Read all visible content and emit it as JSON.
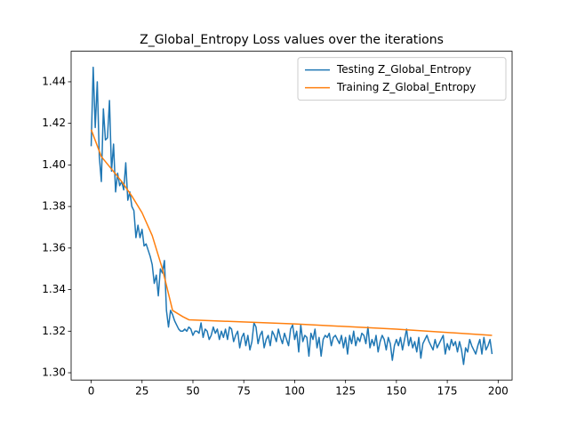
{
  "chart_data": {
    "type": "line",
    "title": "Z_Global_Entropy Loss values over the iterations",
    "xlim": [
      -9.85,
      206.85
    ],
    "ylim": [
      1.2965,
      1.4547
    ],
    "xticks": [
      0,
      25,
      50,
      75,
      100,
      125,
      150,
      175,
      200
    ],
    "yticks": [
      {
        "value": 1.3,
        "label": "1.30"
      },
      1.32,
      1.34,
      1.36,
      1.38,
      {
        "value": 1.4,
        "label": "1.40"
      },
      1.42,
      1.44
    ],
    "legend": "upper right",
    "series": [
      {
        "name": "Testing Z_Global_Entropy",
        "color": "#1f77b4",
        "x": [
          0,
          1,
          2,
          3,
          4,
          5,
          6,
          7,
          8,
          9,
          10,
          11,
          12,
          13,
          14,
          15,
          16,
          17,
          18,
          19,
          20,
          21,
          22,
          23,
          24,
          25,
          26,
          27,
          28,
          29,
          30,
          31,
          32,
          33,
          34,
          35,
          36,
          37,
          38,
          39,
          40,
          41,
          42,
          43,
          44,
          45,
          46,
          47,
          48,
          49,
          50,
          51,
          52,
          53,
          54,
          55,
          56,
          57,
          58,
          59,
          60,
          61,
          62,
          63,
          64,
          65,
          66,
          67,
          68,
          69,
          70,
          71,
          72,
          73,
          74,
          75,
          76,
          77,
          78,
          79,
          80,
          81,
          82,
          83,
          84,
          85,
          86,
          87,
          88,
          89,
          90,
          91,
          92,
          93,
          94,
          95,
          96,
          97,
          98,
          99,
          100,
          101,
          102,
          103,
          104,
          105,
          106,
          107,
          108,
          109,
          110,
          111,
          112,
          113,
          114,
          115,
          116,
          117,
          118,
          119,
          120,
          121,
          122,
          123,
          124,
          125,
          126,
          127,
          128,
          129,
          130,
          131,
          132,
          133,
          134,
          135,
          136,
          137,
          138,
          139,
          140,
          141,
          142,
          143,
          144,
          145,
          146,
          147,
          148,
          149,
          150,
          151,
          152,
          153,
          154,
          155,
          156,
          157,
          158,
          159,
          160,
          161,
          162,
          163,
          164,
          165,
          166,
          167,
          168,
          169,
          170,
          171,
          172,
          173,
          174,
          175,
          176,
          177,
          178,
          179,
          180,
          181,
          182,
          183,
          184,
          185,
          186,
          187,
          188,
          189,
          190,
          191,
          192,
          193,
          194,
          195,
          196,
          197
        ],
        "values": [
          1.409,
          1.447,
          1.418,
          1.44,
          1.404,
          1.392,
          1.427,
          1.412,
          1.413,
          1.431,
          1.397,
          1.41,
          1.387,
          1.396,
          1.39,
          1.392,
          1.388,
          1.401,
          1.383,
          1.387,
          1.38,
          1.378,
          1.365,
          1.371,
          1.365,
          1.369,
          1.361,
          1.362,
          1.359,
          1.356,
          1.352,
          1.343,
          1.347,
          1.337,
          1.35,
          1.348,
          1.354,
          1.33,
          1.322,
          1.33,
          1.328,
          1.325,
          1.323,
          1.321,
          1.32,
          1.32,
          1.321,
          1.32,
          1.322,
          1.321,
          1.318,
          1.32,
          1.32,
          1.319,
          1.324,
          1.317,
          1.321,
          1.32,
          1.316,
          1.318,
          1.322,
          1.319,
          1.321,
          1.316,
          1.32,
          1.317,
          1.321,
          1.316,
          1.322,
          1.321,
          1.315,
          1.318,
          1.32,
          1.312,
          1.317,
          1.319,
          1.313,
          1.318,
          1.311,
          1.315,
          1.324,
          1.322,
          1.314,
          1.318,
          1.32,
          1.312,
          1.316,
          1.318,
          1.313,
          1.32,
          1.318,
          1.315,
          1.321,
          1.317,
          1.314,
          1.319,
          1.316,
          1.313,
          1.321,
          1.323,
          1.316,
          1.32,
          1.31,
          1.323,
          1.315,
          1.318,
          1.317,
          1.308,
          1.319,
          1.316,
          1.321,
          1.312,
          1.317,
          1.308,
          1.316,
          1.318,
          1.317,
          1.319,
          1.313,
          1.317,
          1.318,
          1.316,
          1.314,
          1.318,
          1.312,
          1.317,
          1.309,
          1.318,
          1.314,
          1.32,
          1.313,
          1.317,
          1.315,
          1.319,
          1.318,
          1.314,
          1.322,
          1.312,
          1.316,
          1.313,
          1.318,
          1.31,
          1.315,
          1.318,
          1.316,
          1.311,
          1.317,
          1.314,
          1.306,
          1.313,
          1.316,
          1.313,
          1.317,
          1.311,
          1.316,
          1.321,
          1.313,
          1.317,
          1.312,
          1.315,
          1.31,
          1.317,
          1.307,
          1.314,
          1.316,
          1.318,
          1.315,
          1.313,
          1.311,
          1.316,
          1.312,
          1.314,
          1.316,
          1.318,
          1.309,
          1.314,
          1.311,
          1.316,
          1.313,
          1.315,
          1.31,
          1.315,
          1.311,
          1.304,
          1.312,
          1.31,
          1.316,
          1.313,
          1.311,
          1.309,
          1.313,
          1.316,
          1.309,
          1.317,
          1.311,
          1.313,
          1.316,
          1.309
        ]
      },
      {
        "name": "Training Z_Global_Entropy",
        "color": "#ff7f0e",
        "x": [
          0,
          5,
          10,
          15,
          20,
          25,
          30,
          35,
          40,
          45,
          48,
          60,
          100,
          150,
          197
        ],
        "values": [
          1.417,
          1.404,
          1.398,
          1.392,
          1.385,
          1.377,
          1.366,
          1.35,
          1.33,
          1.327,
          1.3255,
          1.325,
          1.3235,
          1.321,
          1.318
        ]
      }
    ]
  }
}
